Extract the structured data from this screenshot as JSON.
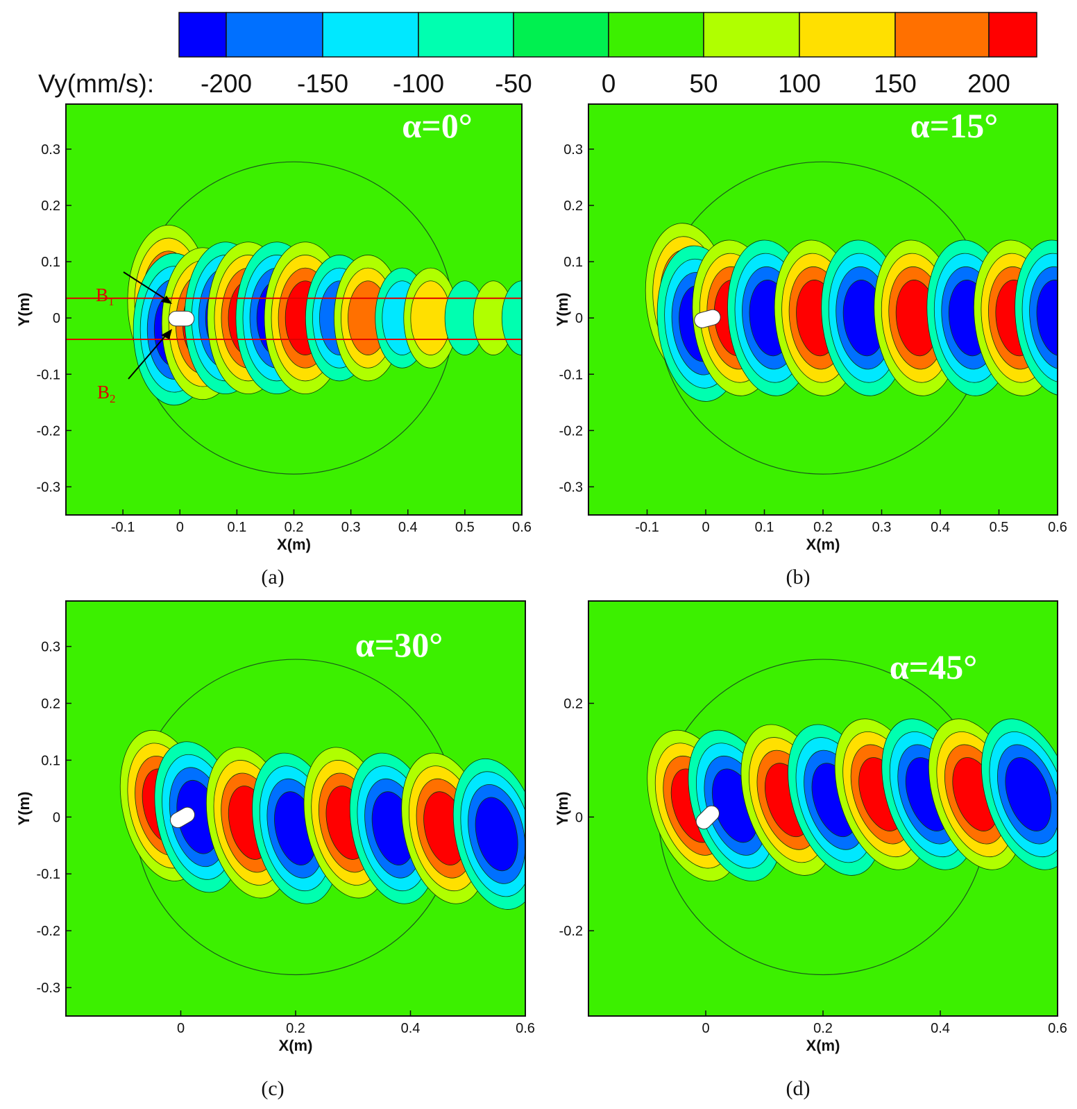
{
  "colorbar": {
    "title": "Vy(mm/s):",
    "levels": [
      "-200",
      "-150",
      "-100",
      "-50",
      "0",
      "50",
      "100",
      "150",
      "200"
    ],
    "colors": [
      "#0000ff",
      "#0070ff",
      "#00e8ff",
      "#00ffb0",
      "#00f050",
      "#3cf000",
      "#b0ff00",
      "#ffe000",
      "#ff7000",
      "#ff0000"
    ]
  },
  "chart_data": [
    {
      "type": "heatmap",
      "label": "(a)",
      "title": "α=0°",
      "xlabel": "X(m)",
      "ylabel": "Y(m)",
      "xlim": [
        -0.2,
        0.6
      ],
      "ylim": [
        -0.35,
        0.38
      ],
      "xticks": [
        "-0.1",
        "0",
        "0.1",
        "0.2",
        "0.3",
        "0.4",
        "0.5",
        "0.6"
      ],
      "yticks": [
        "0.3",
        "0.2",
        "0.1",
        "0",
        "-0.1",
        "-0.2",
        "-0.3"
      ],
      "tilt_deg": 0,
      "annotations": [
        {
          "text": "B",
          "sub": "1"
        },
        {
          "text": "B",
          "sub": "2"
        }
      ],
      "band_y": [
        0.035,
        -0.038
      ],
      "lobes": [
        {
          "x": -0.02,
          "y": 0.03,
          "v": 200
        },
        {
          "x": -0.01,
          "y": -0.02,
          "v": -200
        },
        {
          "x": 0.04,
          "y": -0.01,
          "v": 200
        },
        {
          "x": 0.08,
          "y": 0,
          "v": -200
        },
        {
          "x": 0.12,
          "y": 0,
          "v": 200
        },
        {
          "x": 0.17,
          "y": 0,
          "v": -200
        },
        {
          "x": 0.22,
          "y": 0,
          "v": 200
        },
        {
          "x": 0.28,
          "y": 0,
          "v": -150
        },
        {
          "x": 0.33,
          "y": 0,
          "v": 150
        },
        {
          "x": 0.39,
          "y": 0,
          "v": -100
        },
        {
          "x": 0.44,
          "y": 0,
          "v": 100
        },
        {
          "x": 0.5,
          "y": 0,
          "v": -80
        },
        {
          "x": 0.55,
          "y": 0,
          "v": 60
        },
        {
          "x": 0.6,
          "y": 0,
          "v": -50
        }
      ]
    },
    {
      "type": "heatmap",
      "label": "(b)",
      "title": "α=15°",
      "xlabel": "X(m)",
      "ylabel": "Y(m)",
      "xlim": [
        -0.2,
        0.6
      ],
      "ylim": [
        -0.35,
        0.38
      ],
      "xticks": [
        "-0.1",
        "0",
        "0.1",
        "0.2",
        "0.3",
        "0.4",
        "0.5",
        "0.6"
      ],
      "yticks": [
        "0.3",
        "0.2",
        "0.1",
        "0",
        "-0.1",
        "-0.2",
        "-0.3"
      ],
      "tilt_deg": 15,
      "lobes": [
        {
          "x": -0.03,
          "y": 0.03,
          "v": 200
        },
        {
          "x": -0.01,
          "y": -0.01,
          "v": -200
        },
        {
          "x": 0.05,
          "y": 0,
          "v": 200
        },
        {
          "x": 0.11,
          "y": 0,
          "v": -200
        },
        {
          "x": 0.19,
          "y": 0,
          "v": 200
        },
        {
          "x": 0.27,
          "y": 0,
          "v": -200
        },
        {
          "x": 0.36,
          "y": 0,
          "v": 200
        },
        {
          "x": 0.45,
          "y": 0,
          "v": -200
        },
        {
          "x": 0.53,
          "y": 0,
          "v": 200
        },
        {
          "x": 0.6,
          "y": 0,
          "v": -200
        }
      ]
    },
    {
      "type": "heatmap",
      "label": "(c)",
      "title": "α=30°",
      "xlabel": "X(m)",
      "ylabel": "Y(m)",
      "xlim": [
        -0.2,
        0.6
      ],
      "ylim": [
        -0.35,
        0.38
      ],
      "xticks": [
        "0",
        "0.2",
        "0.4",
        "0.6"
      ],
      "yticks": [
        "0.3",
        "0.2",
        "0.1",
        "0",
        "-0.1",
        "-0.2",
        "-0.3"
      ],
      "tilt_deg": 30,
      "lobes": [
        {
          "x": -0.03,
          "y": 0.02,
          "v": 200
        },
        {
          "x": 0.03,
          "y": 0,
          "v": -200
        },
        {
          "x": 0.12,
          "y": -0.01,
          "v": 200
        },
        {
          "x": 0.2,
          "y": -0.02,
          "v": -200
        },
        {
          "x": 0.29,
          "y": -0.01,
          "v": 200
        },
        {
          "x": 0.37,
          "y": -0.02,
          "v": -200
        },
        {
          "x": 0.46,
          "y": -0.02,
          "v": 200
        },
        {
          "x": 0.55,
          "y": -0.03,
          "v": -200
        }
      ]
    },
    {
      "type": "heatmap",
      "label": "(d)",
      "title": "α=45°",
      "xlabel": "X(m)",
      "ylabel": "Y(m)",
      "xlim": [
        -0.2,
        0.6
      ],
      "ylim": [
        -0.35,
        0.38
      ],
      "xticks": [
        "0",
        "0.2",
        "0.4",
        "0.6"
      ],
      "yticks": [
        "0.2",
        "0",
        "-0.2"
      ],
      "tilt_deg": 45,
      "lobes": [
        {
          "x": -0.02,
          "y": 0.02,
          "v": 200
        },
        {
          "x": 0.05,
          "y": 0.02,
          "v": -200
        },
        {
          "x": 0.14,
          "y": 0.03,
          "v": 200
        },
        {
          "x": 0.22,
          "y": 0.03,
          "v": -200
        },
        {
          "x": 0.3,
          "y": 0.04,
          "v": 200
        },
        {
          "x": 0.38,
          "y": 0.04,
          "v": -200
        },
        {
          "x": 0.46,
          "y": 0.04,
          "v": 200
        },
        {
          "x": 0.55,
          "y": 0.04,
          "v": -200
        }
      ]
    }
  ]
}
